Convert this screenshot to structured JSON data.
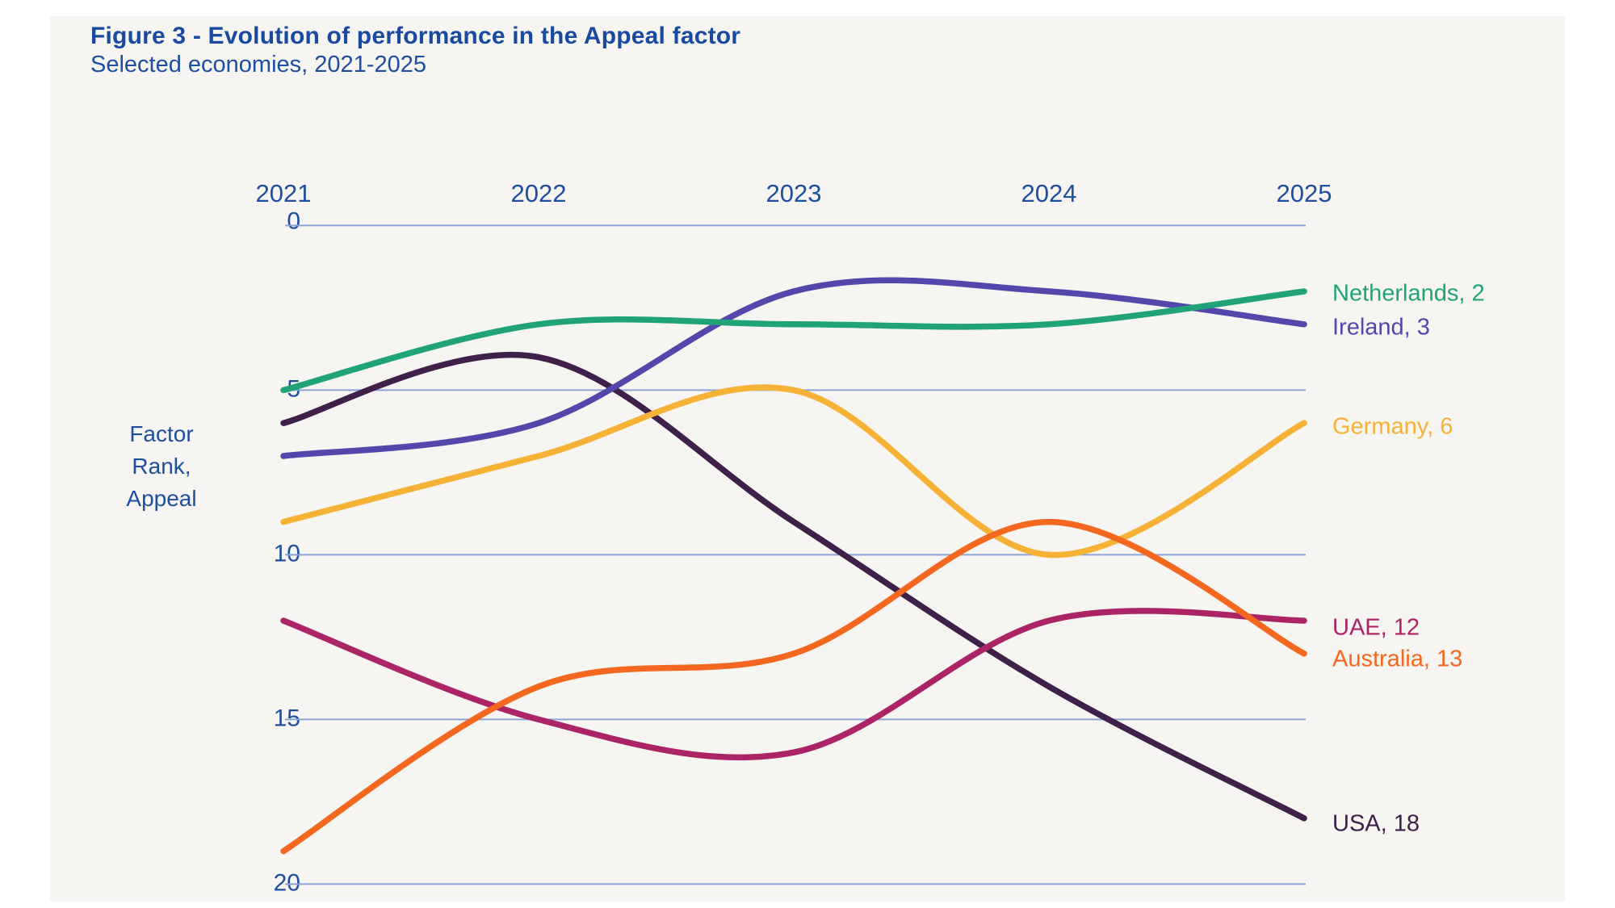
{
  "figure": {
    "title": "Figure 3 - Evolution of performance in the Appeal factor",
    "subtitle": "Selected economies, 2021-2025"
  },
  "colors": {
    "page_background": "#ffffff",
    "panel_background": "#f6f5f2",
    "title_text": "#1a4aa0",
    "axis_text": "#1d4fa1",
    "gridline": "#8ba3d4"
  },
  "chart_data": {
    "type": "line",
    "title": "Evolution of performance in the Appeal factor",
    "subtitle": "Selected economies, 2021-2025",
    "x": [
      "2021",
      "2022",
      "2023",
      "2024",
      "2025"
    ],
    "xlabel": "",
    "ylabel": "Factor Rank, Appeal",
    "ylabel_lines": [
      "Factor",
      "Rank,",
      "Appeal"
    ],
    "yticks": [
      "0",
      "5",
      "10",
      "15",
      "20"
    ],
    "ylim": [
      0,
      20
    ],
    "y_axis_inverted": true,
    "grid": "horizontal",
    "line_style": "smoothed",
    "legend_position": "right-end-labels",
    "series": [
      {
        "name": "Netherlands",
        "values": [
          5,
          3,
          3,
          3,
          2
        ],
        "color": "#1fa377",
        "end_label": "Netherlands, 2"
      },
      {
        "name": "Ireland",
        "values": [
          7,
          6,
          2,
          2,
          3
        ],
        "color": "#5447ab",
        "end_label": "Ireland, 3"
      },
      {
        "name": "Germany",
        "values": [
          9,
          7,
          5,
          10,
          6
        ],
        "color": "#f5b237",
        "end_label": "Germany, 6"
      },
      {
        "name": "UAE",
        "values": [
          12,
          15,
          16,
          12,
          12
        ],
        "color": "#ab2466",
        "end_label": "UAE, 12"
      },
      {
        "name": "Australia",
        "values": [
          19,
          14,
          13,
          9,
          13
        ],
        "color": "#f4671f",
        "end_label": "Australia, 13"
      },
      {
        "name": "USA",
        "values": [
          6,
          4,
          9,
          14,
          18
        ],
        "color": "#3e2049",
        "end_label": "USA, 18"
      }
    ],
    "draw_order": [
      "USA",
      "UAE",
      "Germany",
      "Australia",
      "Ireland",
      "Netherlands"
    ]
  }
}
